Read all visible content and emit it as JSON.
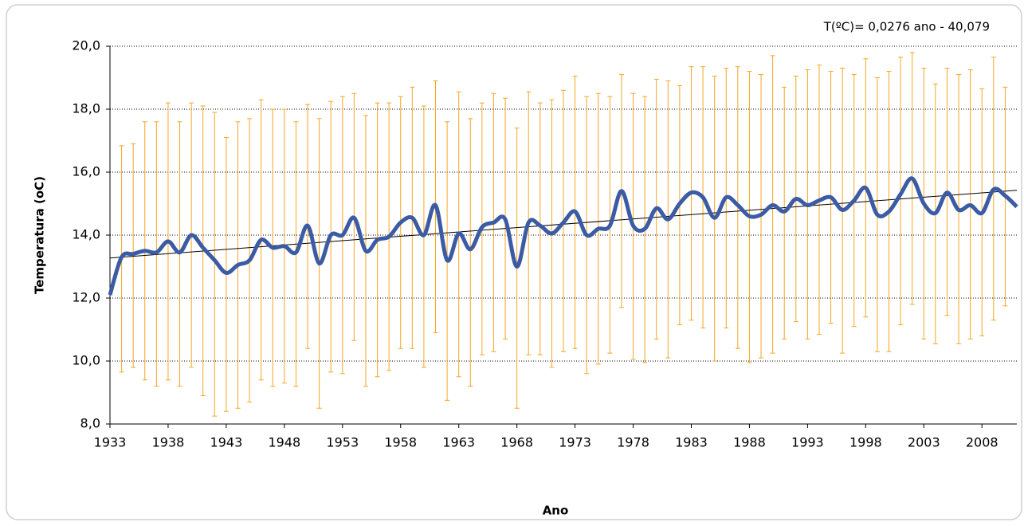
{
  "chart_data": {
    "type": "line",
    "annotation": "T(ºC)= 0,0276 ano - 40,079",
    "x_label": "Ano",
    "y_label": "Temperatura (oC)",
    "x": [
      1933,
      1934,
      1935,
      1936,
      1937,
      1938,
      1939,
      1940,
      1941,
      1942,
      1943,
      1944,
      1945,
      1946,
      1947,
      1948,
      1949,
      1950,
      1951,
      1952,
      1953,
      1954,
      1955,
      1956,
      1957,
      1958,
      1959,
      1960,
      1961,
      1962,
      1963,
      1964,
      1965,
      1966,
      1967,
      1968,
      1969,
      1970,
      1971,
      1972,
      1973,
      1974,
      1975,
      1976,
      1977,
      1978,
      1979,
      1980,
      1981,
      1982,
      1983,
      1984,
      1985,
      1986,
      1987,
      1988,
      1989,
      1990,
      1991,
      1992,
      1993,
      1994,
      1995,
      1996,
      1997,
      1998,
      1999,
      2000,
      2001,
      2002,
      2003,
      2004,
      2005,
      2006,
      2007,
      2008,
      2009,
      2010,
      2011
    ],
    "series": [
      {
        "color": "#3b5ba5",
        "values": [
          12.1,
          13.3,
          13.4,
          13.5,
          13.45,
          13.8,
          13.45,
          14.0,
          13.6,
          13.2,
          12.8,
          13.05,
          13.2,
          13.85,
          13.6,
          13.65,
          13.45,
          14.3,
          13.1,
          14.0,
          14.0,
          14.55,
          13.5,
          13.85,
          13.95,
          14.4,
          14.55,
          14.0,
          14.95,
          13.2,
          14.05,
          13.55,
          14.25,
          14.4,
          14.5,
          13.0,
          14.4,
          14.3,
          14.05,
          14.4,
          14.75,
          14.0,
          14.2,
          14.3,
          15.4,
          14.3,
          14.2,
          14.85,
          14.5,
          15.0,
          15.35,
          15.2,
          14.55,
          15.2,
          14.95,
          14.6,
          14.65,
          14.95,
          14.75,
          15.15,
          14.95,
          15.1,
          15.2,
          14.8,
          15.1,
          15.5,
          14.65,
          14.75,
          15.3,
          15.8,
          15.0,
          14.7,
          15.35,
          14.8,
          14.95,
          14.7,
          15.45,
          15.25,
          14.9
        ]
      }
    ],
    "error_bars": {
      "color": "#f5a623",
      "upper": [
        null,
        16.84,
        16.9,
        17.6,
        17.6,
        18.2,
        17.6,
        18.2,
        18.1,
        17.9,
        17.1,
        17.6,
        17.7,
        18.3,
        18.0,
        18.0,
        17.6,
        18.15,
        17.7,
        18.25,
        18.4,
        18.5,
        17.8,
        18.2,
        18.2,
        18.4,
        18.7,
        18.1,
        18.9,
        17.6,
        18.55,
        17.7,
        18.2,
        18.5,
        18.35,
        17.4,
        18.55,
        18.2,
        18.3,
        18.6,
        19.05,
        18.4,
        18.5,
        18.4,
        19.1,
        18.5,
        18.4,
        18.95,
        18.9,
        18.75,
        19.35,
        19.35,
        19.05,
        19.3,
        19.35,
        19.2,
        19.1,
        19.7,
        18.7,
        19.05,
        19.25,
        19.4,
        19.2,
        19.3,
        19.1,
        19.6,
        19.0,
        19.2,
        19.65,
        19.8,
        19.3,
        18.8,
        19.3,
        19.1,
        19.25,
        18.65,
        19.65,
        18.7,
        null
      ],
      "lower": [
        null,
        9.65,
        9.8,
        9.4,
        9.2,
        9.4,
        9.2,
        9.8,
        8.9,
        8.25,
        8.4,
        8.5,
        8.7,
        9.4,
        9.2,
        9.3,
        9.2,
        10.4,
        8.5,
        9.65,
        9.6,
        10.65,
        9.2,
        9.5,
        9.7,
        10.4,
        10.4,
        9.8,
        10.9,
        8.75,
        9.5,
        9.2,
        10.2,
        10.3,
        10.7,
        8.5,
        10.2,
        10.2,
        9.8,
        10.3,
        10.4,
        9.6,
        9.9,
        10.25,
        11.7,
        10.05,
        9.95,
        10.7,
        10.1,
        11.15,
        11.3,
        11.05,
        10.0,
        11.05,
        10.4,
        9.95,
        10.1,
        10.25,
        10.7,
        11.25,
        10.7,
        10.85,
        11.2,
        10.25,
        11.1,
        11.4,
        10.3,
        10.3,
        11.15,
        11.8,
        10.7,
        10.55,
        11.45,
        10.55,
        10.7,
        10.8,
        11.3,
        11.75,
        null
      ]
    },
    "trendline": {
      "slope": 0.0276,
      "intercept": -40.079,
      "color": "#000000"
    },
    "xlim": [
      1933,
      2011
    ],
    "ylim": [
      8,
      20
    ],
    "xticks": [
      1933,
      1938,
      1943,
      1948,
      1953,
      1958,
      1963,
      1968,
      1973,
      1978,
      1983,
      1988,
      1993,
      1998,
      2003,
      2008
    ],
    "yticks": [
      {
        "value": 8,
        "label": "8,0"
      },
      {
        "value": 10,
        "label": "10,0"
      },
      {
        "value": 12,
        "label": "12,0"
      },
      {
        "value": 14,
        "label": "14,0"
      },
      {
        "value": 16,
        "label": "16,0"
      },
      {
        "value": 18,
        "label": "18,0"
      },
      {
        "value": 20,
        "label": "20,0"
      }
    ],
    "grid": true
  }
}
